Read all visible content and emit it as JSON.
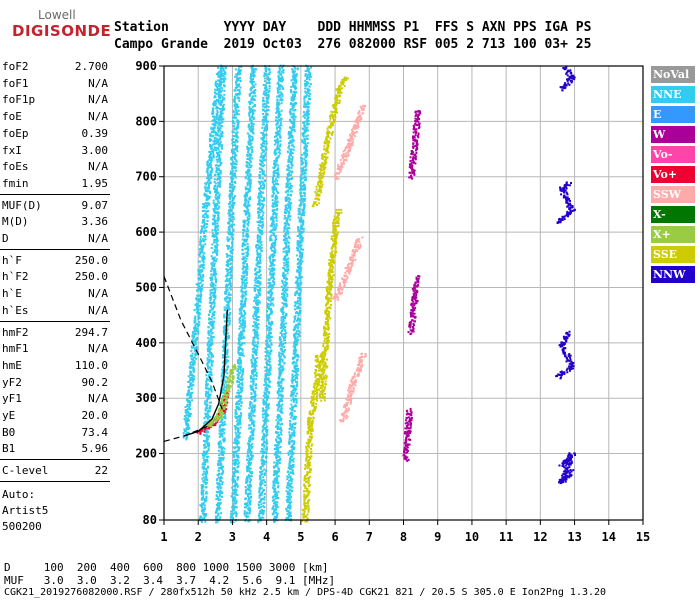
{
  "logo": {
    "top": "Lowell",
    "bottom": "DIGISONDE"
  },
  "header": {
    "line1": "Station       YYYY DAY    DDD HHMMSS P1  FFS S AXN PPS IGA PS",
    "line2": "Campo Grande  2019 Oct03  276 082000 RSF 005 2 713 100 03+ 25"
  },
  "params": {
    "group1": [
      {
        "name": "foF2",
        "value": "2.700"
      },
      {
        "name": "foF1",
        "value": "N/A"
      },
      {
        "name": "foF1p",
        "value": "N/A"
      },
      {
        "name": "foE",
        "value": "N/A"
      },
      {
        "name": "foEp",
        "value": "0.39"
      },
      {
        "name": "fxI",
        "value": "3.00"
      },
      {
        "name": "foEs",
        "value": "N/A"
      },
      {
        "name": "fmin",
        "value": "1.95"
      }
    ],
    "group2": [
      {
        "name": "MUF(D)",
        "value": "9.07"
      },
      {
        "name": "M(D)",
        "value": "3.36"
      },
      {
        "name": "D",
        "value": "N/A"
      }
    ],
    "group3": [
      {
        "name": "h`F",
        "value": "250.0"
      },
      {
        "name": "h`F2",
        "value": "250.0"
      },
      {
        "name": "h`E",
        "value": "N/A"
      },
      {
        "name": "h`Es",
        "value": "N/A"
      }
    ],
    "group4": [
      {
        "name": "hmF2",
        "value": "294.7"
      },
      {
        "name": "hmF1",
        "value": "N/A"
      },
      {
        "name": "hmE",
        "value": "110.0"
      },
      {
        "name": "yF2",
        "value": "90.2"
      },
      {
        "name": "yF1",
        "value": "N/A"
      },
      {
        "name": "yE",
        "value": "20.0"
      },
      {
        "name": "B0",
        "value": "73.4"
      },
      {
        "name": "B1",
        "value": "5.96"
      }
    ],
    "clevel": {
      "name": "C-level",
      "value": "22"
    },
    "auto": [
      "Auto:",
      "Artist5",
      "500200"
    ]
  },
  "footer": {
    "d_row": "D     100  200  400  600  800 1000 1500 3000 [km]",
    "muf_row": "MUF   3.0  3.0  3.2  3.4  3.7  4.2  5.6  9.1 [MHz]",
    "file_row": "CGK21_2019276082000.RSF / 280fx512h 50 kHz 2.5 km / DPS-4D CGK21 821 / 20.5 S 305.0 E Ion2Png 1.3.20"
  },
  "legend": [
    {
      "label": "NoVal",
      "color": "#999999"
    },
    {
      "label": "NNE",
      "color": "#33ccee"
    },
    {
      "label": "E",
      "color": "#3399ff"
    },
    {
      "label": "W",
      "color": "#aa0099"
    },
    {
      "label": "Vo-",
      "color": "#ff44aa"
    },
    {
      "label": "Vo+",
      "color": "#ee0033"
    },
    {
      "label": "SSW",
      "color": "#ffaaaa"
    },
    {
      "label": "X-",
      "color": "#007700"
    },
    {
      "label": "X+",
      "color": "#99cc44"
    },
    {
      "label": "SSE",
      "color": "#cccc00"
    },
    {
      "label": "NNW",
      "color": "#2200cc"
    }
  ],
  "chart_data": {
    "type": "scatter",
    "xlim": [
      1,
      15
    ],
    "ylim": [
      80,
      900
    ],
    "x_ticks": [
      1,
      2,
      3,
      4,
      5,
      6,
      7,
      8,
      9,
      10,
      11,
      12,
      13,
      14,
      15
    ],
    "y_ticks": [
      80,
      200,
      300,
      400,
      500,
      600,
      700,
      800,
      900
    ],
    "grid": true,
    "legend_position": "right",
    "traces": [
      {
        "series": "NNE",
        "points": [
          [
            1.6,
            230
          ],
          [
            1.9,
            420
          ],
          [
            2.2,
            650
          ],
          [
            2.6,
            900
          ]
        ]
      },
      {
        "series": "NNE",
        "points": [
          [
            2.1,
            80
          ],
          [
            2.3,
            350
          ],
          [
            2.5,
            650
          ],
          [
            2.7,
            900
          ]
        ]
      },
      {
        "series": "NNE",
        "points": [
          [
            2.55,
            80
          ],
          [
            2.75,
            350
          ],
          [
            2.95,
            650
          ],
          [
            3.15,
            900
          ]
        ]
      },
      {
        "series": "NNE",
        "points": [
          [
            3.0,
            80
          ],
          [
            3.2,
            350
          ],
          [
            3.4,
            650
          ],
          [
            3.6,
            900
          ]
        ]
      },
      {
        "series": "NNE",
        "points": [
          [
            3.4,
            80
          ],
          [
            3.6,
            350
          ],
          [
            3.8,
            650
          ],
          [
            4.0,
            900
          ]
        ]
      },
      {
        "series": "NNE",
        "points": [
          [
            3.8,
            80
          ],
          [
            4.0,
            350
          ],
          [
            4.2,
            650
          ],
          [
            4.4,
            900
          ]
        ]
      },
      {
        "series": "NNE",
        "points": [
          [
            4.2,
            80
          ],
          [
            4.4,
            350
          ],
          [
            4.6,
            650
          ],
          [
            4.8,
            900
          ]
        ]
      },
      {
        "series": "NNE",
        "points": [
          [
            4.6,
            80
          ],
          [
            4.8,
            350
          ],
          [
            5.0,
            650
          ],
          [
            5.2,
            900
          ]
        ]
      },
      {
        "series": "SSE",
        "points": [
          [
            5.1,
            80
          ],
          [
            5.25,
            260
          ],
          [
            5.45,
            330
          ],
          [
            5.5,
            380
          ]
        ]
      },
      {
        "series": "SSE",
        "points": [
          [
            5.6,
            300
          ],
          [
            5.8,
            500
          ],
          [
            6.0,
            620
          ],
          [
            6.1,
            640
          ]
        ]
      },
      {
        "series": "SSE",
        "points": [
          [
            5.4,
            650
          ],
          [
            5.8,
            780
          ],
          [
            6.1,
            860
          ],
          [
            6.3,
            880
          ]
        ]
      },
      {
        "series": "SSW",
        "points": [
          [
            6.2,
            260
          ],
          [
            6.5,
            330
          ],
          [
            6.8,
            380
          ]
        ]
      },
      {
        "series": "SSW",
        "points": [
          [
            6.0,
            480
          ],
          [
            6.4,
            540
          ],
          [
            6.7,
            590
          ]
        ]
      },
      {
        "series": "SSW",
        "points": [
          [
            6.0,
            700
          ],
          [
            6.4,
            760
          ],
          [
            6.8,
            830
          ]
        ]
      },
      {
        "series": "NNW",
        "points": [
          [
            12.6,
            180
          ],
          [
            12.9,
            200
          ],
          [
            12.6,
            150
          ],
          [
            12.9,
            170
          ]
        ]
      },
      {
        "series": "NNW",
        "points": [
          [
            12.5,
            340
          ],
          [
            12.9,
            360
          ],
          [
            12.6,
            400
          ],
          [
            12.8,
            420
          ]
        ]
      },
      {
        "series": "NNW",
        "points": [
          [
            12.5,
            620
          ],
          [
            12.9,
            640
          ],
          [
            12.6,
            680
          ],
          [
            12.8,
            690
          ]
        ]
      },
      {
        "series": "NNW",
        "points": [
          [
            12.6,
            860
          ],
          [
            12.9,
            880
          ],
          [
            12.7,
            900
          ]
        ]
      },
      {
        "series": "W",
        "points": [
          [
            8.05,
            190
          ],
          [
            8.1,
            240
          ],
          [
            8.15,
            280
          ]
        ]
      },
      {
        "series": "W",
        "points": [
          [
            8.2,
            420
          ],
          [
            8.3,
            480
          ],
          [
            8.35,
            520
          ]
        ]
      },
      {
        "series": "W",
        "points": [
          [
            8.2,
            700
          ],
          [
            8.3,
            760
          ],
          [
            8.4,
            820
          ]
        ]
      },
      {
        "series": "Vo+",
        "points": [
          [
            2.0,
            240
          ],
          [
            2.4,
            255
          ],
          [
            2.7,
            280
          ],
          [
            2.8,
            310
          ]
        ]
      },
      {
        "series": "X+",
        "points": [
          [
            2.2,
            250
          ],
          [
            2.6,
            270
          ],
          [
            2.9,
            330
          ],
          [
            3.0,
            360
          ]
        ]
      }
    ],
    "fit_curve": [
      [
        1.6,
        232
      ],
      [
        2.0,
        240
      ],
      [
        2.4,
        262
      ],
      [
        2.6,
        290
      ],
      [
        2.75,
        340
      ],
      [
        2.8,
        400
      ],
      [
        2.85,
        460
      ]
    ],
    "fit_dashed": [
      [
        1.0,
        222
      ],
      [
        1.6,
        232
      ],
      [
        2.3,
        250
      ]
    ],
    "profile_dashed": [
      [
        1.0,
        520
      ],
      [
        1.5,
        440
      ],
      [
        2.0,
        380
      ],
      [
        2.4,
        330
      ],
      [
        2.7,
        280
      ]
    ]
  }
}
